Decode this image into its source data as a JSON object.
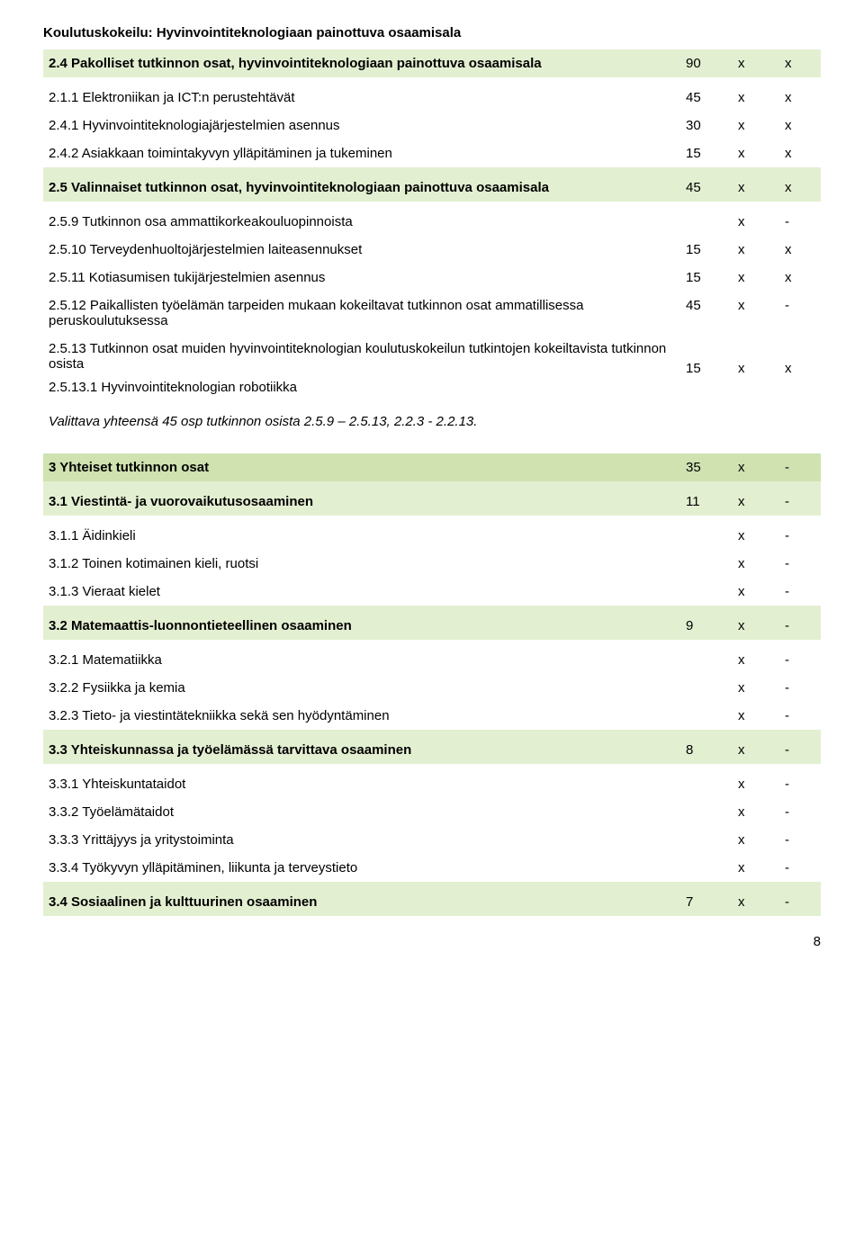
{
  "page_title": "Koulutuskokeilu: Hyvinvointiteknologiaan painottuva osaamisala",
  "page_number": "8",
  "tables": {
    "t1": {
      "rows": [
        {
          "cls": "hdr lg",
          "label": "2.4 Pakolliset tutkinnon osat, hyvinvointiteknologiaan painottuva osaamisala",
          "c1": "90",
          "c2": "x",
          "c3": "x"
        },
        {
          "cls": "gap",
          "label": "2.1.1 Elektroniikan ja ICT:n perustehtävät",
          "c1": "45",
          "c2": "x",
          "c3": "x"
        },
        {
          "cls": "",
          "label": "2.4.1 Hyvinvointiteknologiajärjestelmien asennus",
          "c1": "30",
          "c2": "x",
          "c3": "x"
        },
        {
          "cls": "",
          "label": "2.4.2 Asiakkaan toimintakyvyn ylläpitäminen ja tukeminen",
          "c1": "15",
          "c2": "x",
          "c3": "x"
        },
        {
          "cls": "hdr lg gap",
          "label": "2.5 Valinnaiset tutkinnon osat, hyvinvointiteknologiaan painottuva osaamisala",
          "c1": "45",
          "c2": "x",
          "c3": "x"
        },
        {
          "cls": "gap",
          "label": "2.5.9 Tutkinnon osa ammattikorkeakouluopinnoista",
          "c1": "",
          "c2": "x",
          "c3": "-"
        },
        {
          "cls": "",
          "label": "2.5.10 Terveydenhuoltojärjestelmien laiteasennukset",
          "c1": "15",
          "c2": "x",
          "c3": "x"
        },
        {
          "cls": "",
          "label": "2.5.11 Kotiasumisen tukijärjestelmien asennus",
          "c1": "15",
          "c2": "x",
          "c3": "x"
        },
        {
          "cls": "",
          "label": "2.5.12 Paikallisten työelämän tarpeiden mukaan kokeiltavat tutkinnon osat ammatillisessa peruskoulutuksessa",
          "c1": "45",
          "c2": "x",
          "c3": "-"
        }
      ],
      "double": {
        "line1": "2.5.13 Tutkinnon osat muiden hyvinvointiteknologian koulutuskokeilun tutkintojen kokeiltavista tutkinnon osista",
        "line2": "2.5.13.1 Hyvinvointiteknologian robotiikka",
        "c1": "15",
        "c2": "x",
        "c3": "x"
      },
      "footnote": "Valittava yhteensä 45 osp tutkinnon osista 2.5.9 – 2.5.13, 2.2.3 - 2.2.13."
    },
    "t2": {
      "rows": [
        {
          "cls": "hdr dg",
          "label": "3 Yhteiset tutkinnon osat",
          "c1": "35",
          "c2": "x",
          "c3": "-"
        },
        {
          "cls": "hdr lg gap",
          "label": "3.1 Viestintä- ja vuorovaikutusosaaminen",
          "c1": "11",
          "c2": "x",
          "c3": "-"
        },
        {
          "cls": "gap",
          "label": "3.1.1 Äidinkieli",
          "c1": "",
          "c2": "x",
          "c3": "-"
        },
        {
          "cls": "",
          "label": "3.1.2 Toinen kotimainen kieli, ruotsi",
          "c1": "",
          "c2": "x",
          "c3": "-"
        },
        {
          "cls": "",
          "label": "3.1.3 Vieraat kielet",
          "c1": "",
          "c2": "x",
          "c3": "-"
        },
        {
          "cls": "hdr lg gap",
          "label": "3.2 Matemaattis-luonnontieteellinen osaaminen",
          "c1": "9",
          "c2": "x",
          "c3": "-"
        },
        {
          "cls": "gap",
          "label": "3.2.1 Matematiikka",
          "c1": "",
          "c2": "x",
          "c3": "-"
        },
        {
          "cls": "",
          "label": "3.2.2 Fysiikka ja kemia",
          "c1": "",
          "c2": "x",
          "c3": "-"
        },
        {
          "cls": "",
          "label": "3.2.3 Tieto- ja viestintätekniikka sekä sen hyödyntäminen",
          "c1": "",
          "c2": "x",
          "c3": "-"
        },
        {
          "cls": "hdr lg gap",
          "label": "3.3 Yhteiskunnassa ja työelämässä tarvittava osaaminen",
          "c1": "8",
          "c2": "x",
          "c3": "-"
        },
        {
          "cls": "gap",
          "label": "3.3.1 Yhteiskuntataidot",
          "c1": "",
          "c2": "x",
          "c3": "-"
        },
        {
          "cls": "",
          "label": "3.3.2 Työelämätaidot",
          "c1": "",
          "c2": "x",
          "c3": "-"
        },
        {
          "cls": "",
          "label": "3.3.3 Yrittäjyys ja yritystoiminta",
          "c1": "",
          "c2": "x",
          "c3": "-"
        },
        {
          "cls": "",
          "label": "3.3.4 Työkyvyn ylläpitäminen, liikunta ja terveystieto",
          "c1": "",
          "c2": "x",
          "c3": "-"
        },
        {
          "cls": "hdr lg gap",
          "label": "3.4 Sosiaalinen ja kulttuurinen osaaminen",
          "c1": "7",
          "c2": "x",
          "c3": "-"
        }
      ]
    }
  }
}
